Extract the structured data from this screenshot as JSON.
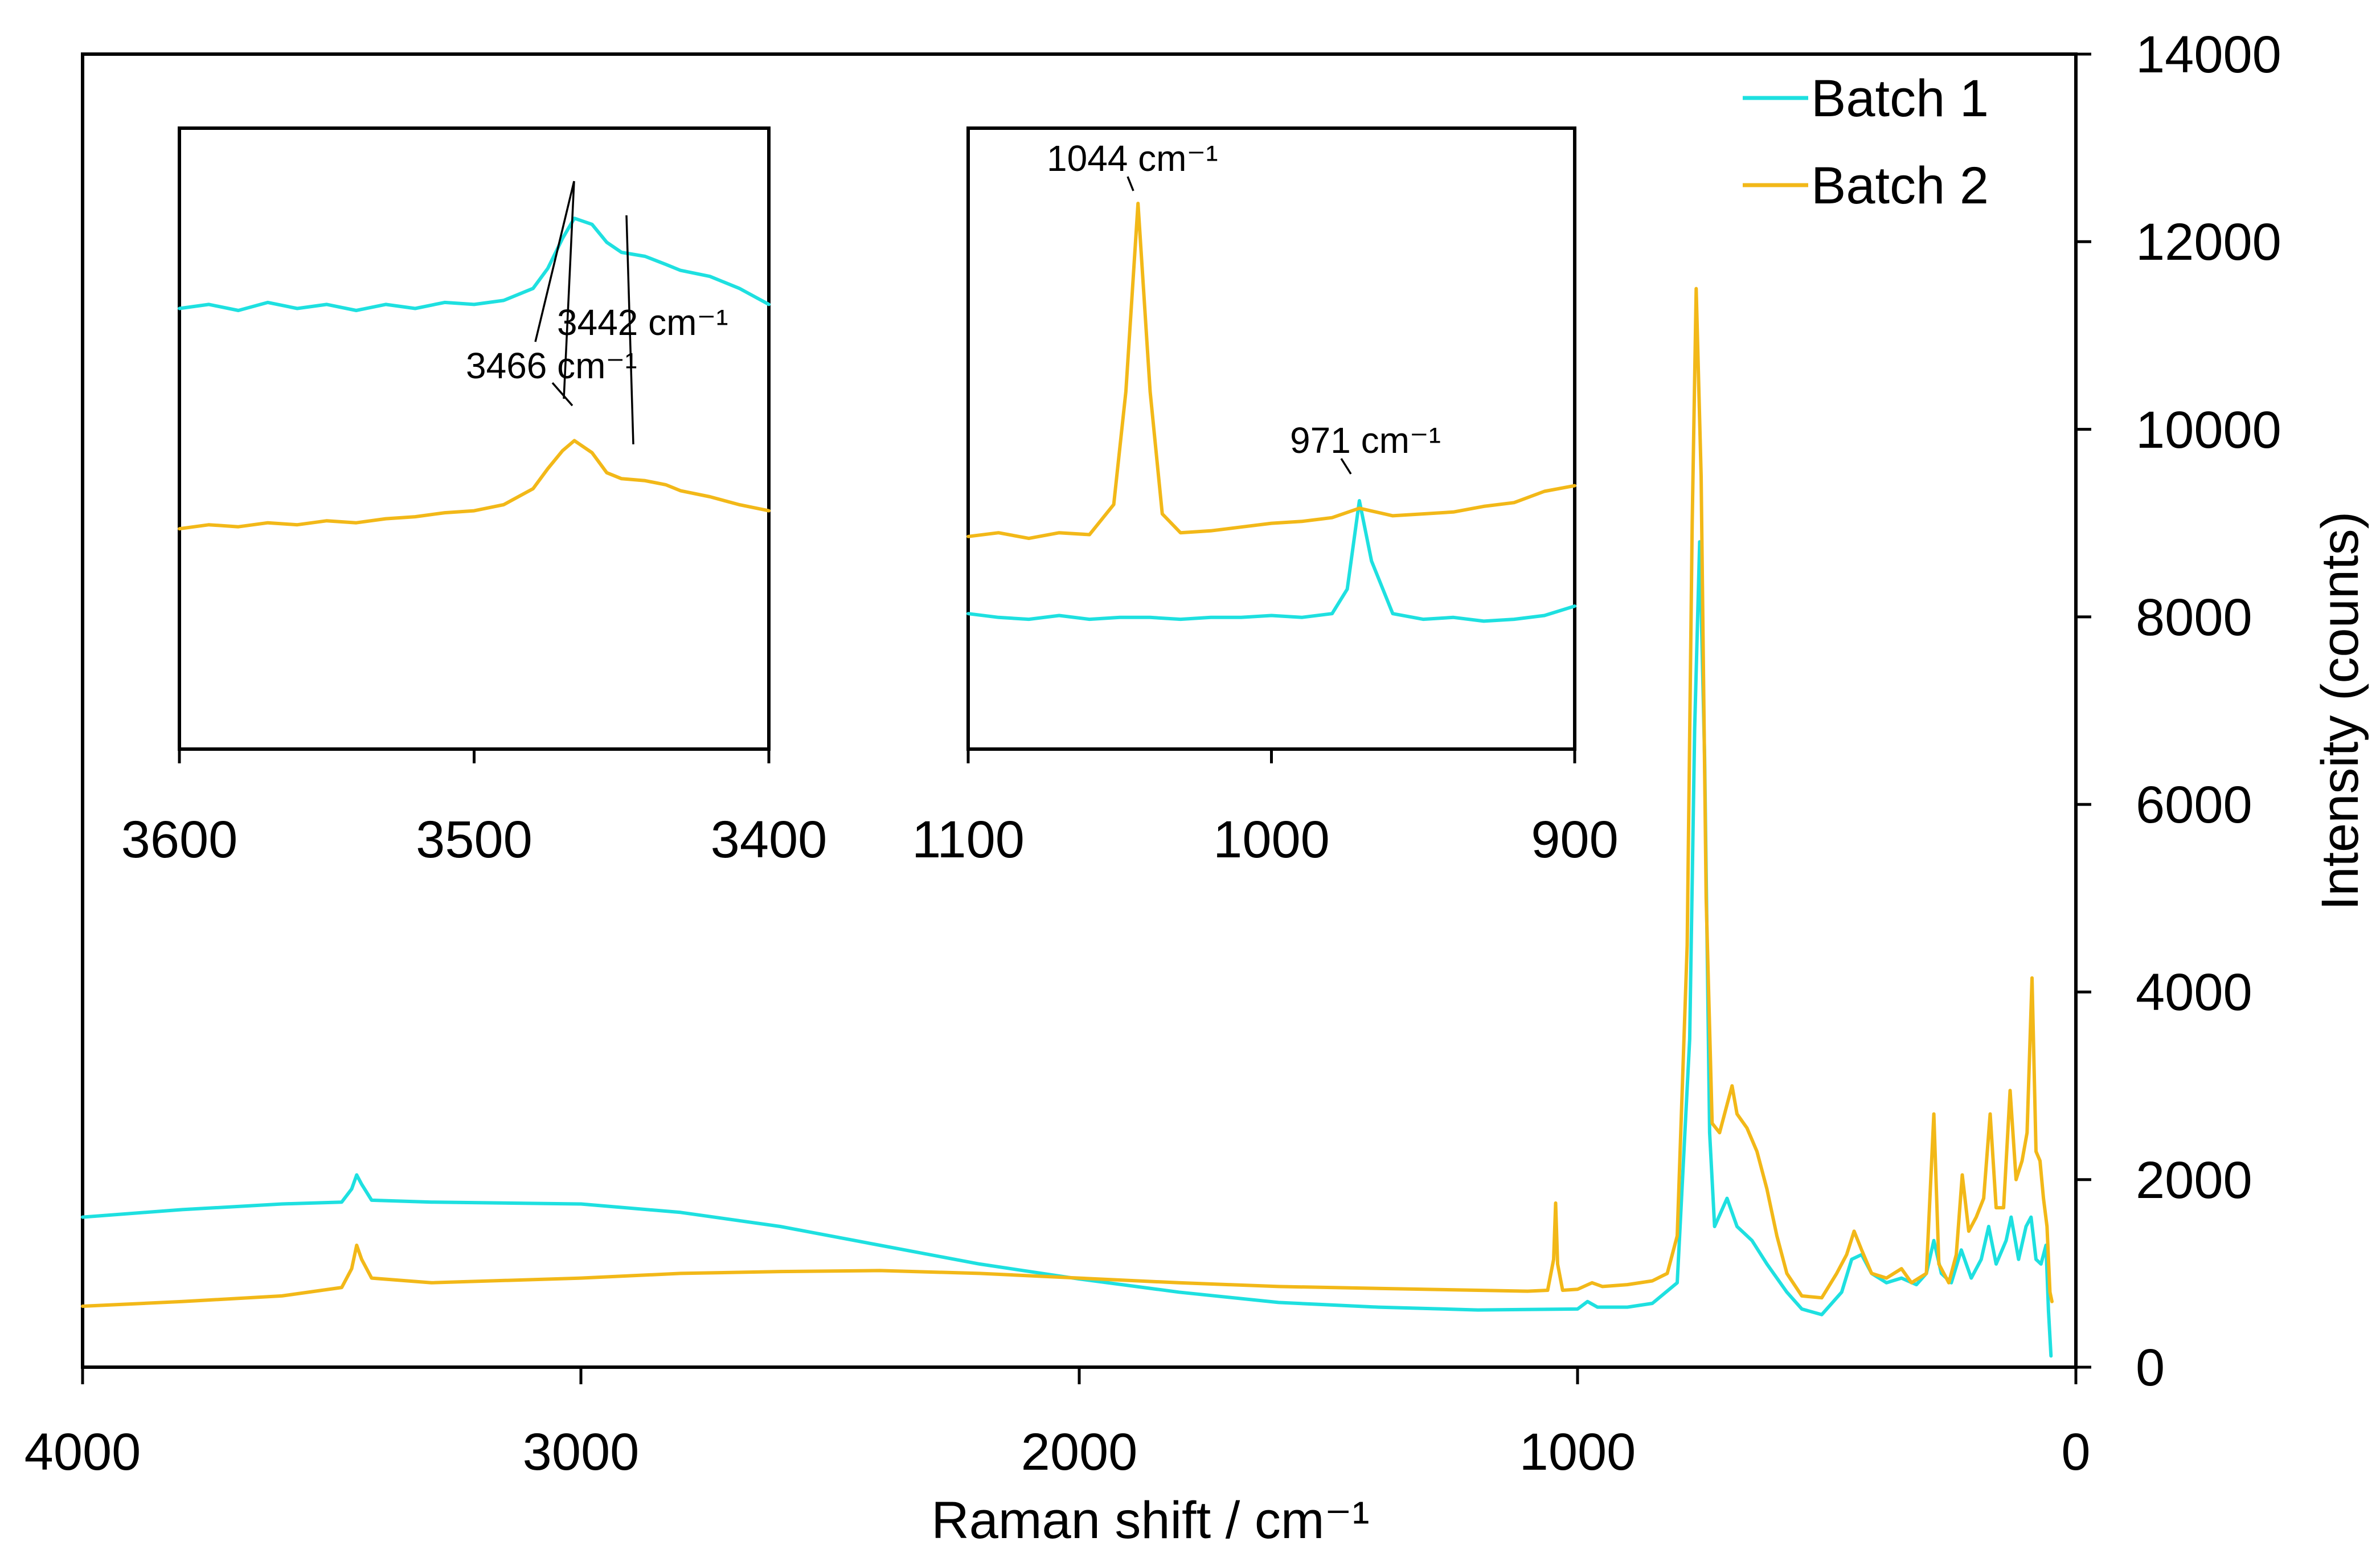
{
  "chart_data": {
    "type": "line",
    "title": "",
    "xlabel": "Raman shift / cm⁻¹",
    "ylabel": "Intensity (counts)",
    "x_axis_reversed": true,
    "xlim": [
      4000,
      0
    ],
    "ylim": [
      0,
      14000
    ],
    "x_ticks": [
      4000,
      3000,
      2000,
      1000,
      0
    ],
    "x_tick_labels": [
      "4000",
      "3000",
      "2000",
      "1000",
      "0"
    ],
    "y_ticks": [
      0,
      2000,
      4000,
      6000,
      8000,
      10000,
      12000,
      14000
    ],
    "y_tick_labels": [
      "0",
      "2000",
      "4000",
      "6000",
      "8000",
      "10000",
      "12000",
      "14000"
    ],
    "y_axis_position": "right",
    "grid": false,
    "legend": {
      "position": "top-right",
      "entries": [
        "Batch 1",
        "Batch 2"
      ]
    },
    "series": [
      {
        "name": "Batch 1",
        "color": "#1ee0e0",
        "points": [
          [
            4000,
            1600
          ],
          [
            3800,
            1680
          ],
          [
            3600,
            1740
          ],
          [
            3480,
            1760
          ],
          [
            3460,
            1900
          ],
          [
            3450,
            2050
          ],
          [
            3440,
            1950
          ],
          [
            3420,
            1780
          ],
          [
            3300,
            1760
          ],
          [
            3000,
            1740
          ],
          [
            2800,
            1650
          ],
          [
            2600,
            1500
          ],
          [
            2400,
            1300
          ],
          [
            2200,
            1100
          ],
          [
            2000,
            940
          ],
          [
            1800,
            800
          ],
          [
            1600,
            690
          ],
          [
            1400,
            640
          ],
          [
            1200,
            610
          ],
          [
            1000,
            620
          ],
          [
            980,
            700
          ],
          [
            960,
            640
          ],
          [
            900,
            640
          ],
          [
            850,
            680
          ],
          [
            800,
            900
          ],
          [
            775,
            3500
          ],
          [
            765,
            6800
          ],
          [
            755,
            8800
          ],
          [
            745,
            6500
          ],
          [
            735,
            2500
          ],
          [
            725,
            1500
          ],
          [
            700,
            1800
          ],
          [
            680,
            1500
          ],
          [
            650,
            1350
          ],
          [
            620,
            1100
          ],
          [
            580,
            800
          ],
          [
            550,
            620
          ],
          [
            510,
            560
          ],
          [
            470,
            800
          ],
          [
            450,
            1150
          ],
          [
            430,
            1200
          ],
          [
            410,
            1000
          ],
          [
            380,
            900
          ],
          [
            350,
            950
          ],
          [
            320,
            880
          ],
          [
            300,
            1000
          ],
          [
            285,
            1350
          ],
          [
            270,
            1000
          ],
          [
            250,
            900
          ],
          [
            230,
            1250
          ],
          [
            210,
            950
          ],
          [
            190,
            1150
          ],
          [
            175,
            1500
          ],
          [
            160,
            1100
          ],
          [
            140,
            1350
          ],
          [
            130,
            1600
          ],
          [
            115,
            1150
          ],
          [
            100,
            1500
          ],
          [
            90,
            1600
          ],
          [
            80,
            1150
          ],
          [
            70,
            1100
          ],
          [
            60,
            1300
          ],
          [
            55,
            600
          ],
          [
            50,
            120
          ]
        ]
      },
      {
        "name": "Batch 2",
        "color": "#f2b818",
        "points": [
          [
            4000,
            650
          ],
          [
            3800,
            700
          ],
          [
            3600,
            760
          ],
          [
            3480,
            850
          ],
          [
            3460,
            1050
          ],
          [
            3450,
            1300
          ],
          [
            3440,
            1150
          ],
          [
            3420,
            950
          ],
          [
            3300,
            900
          ],
          [
            3000,
            950
          ],
          [
            2800,
            1000
          ],
          [
            2600,
            1020
          ],
          [
            2400,
            1030
          ],
          [
            2200,
            1000
          ],
          [
            2000,
            950
          ],
          [
            1800,
            900
          ],
          [
            1600,
            860
          ],
          [
            1400,
            840
          ],
          [
            1200,
            820
          ],
          [
            1100,
            810
          ],
          [
            1060,
            820
          ],
          [
            1048,
            1150
          ],
          [
            1044,
            1750
          ],
          [
            1040,
            1100
          ],
          [
            1030,
            820
          ],
          [
            1000,
            830
          ],
          [
            971,
            900
          ],
          [
            950,
            860
          ],
          [
            900,
            880
          ],
          [
            850,
            920
          ],
          [
            820,
            1000
          ],
          [
            800,
            1400
          ],
          [
            780,
            4500
          ],
          [
            770,
            9000
          ],
          [
            762,
            11500
          ],
          [
            752,
            9500
          ],
          [
            742,
            5000
          ],
          [
            730,
            2600
          ],
          [
            715,
            2500
          ],
          [
            700,
            2800
          ],
          [
            690,
            3000
          ],
          [
            680,
            2700
          ],
          [
            660,
            2550
          ],
          [
            640,
            2300
          ],
          [
            620,
            1900
          ],
          [
            600,
            1400
          ],
          [
            580,
            1000
          ],
          [
            550,
            760
          ],
          [
            510,
            740
          ],
          [
            480,
            1000
          ],
          [
            460,
            1200
          ],
          [
            445,
            1450
          ],
          [
            430,
            1250
          ],
          [
            410,
            1000
          ],
          [
            380,
            950
          ],
          [
            350,
            1050
          ],
          [
            330,
            900
          ],
          [
            300,
            1000
          ],
          [
            285,
            2700
          ],
          [
            275,
            1100
          ],
          [
            255,
            900
          ],
          [
            240,
            1200
          ],
          [
            228,
            2050
          ],
          [
            215,
            1450
          ],
          [
            200,
            1600
          ],
          [
            185,
            1800
          ],
          [
            172,
            2700
          ],
          [
            160,
            1700
          ],
          [
            145,
            1700
          ],
          [
            132,
            2950
          ],
          [
            120,
            2000
          ],
          [
            108,
            2200
          ],
          [
            98,
            2500
          ],
          [
            88,
            4150
          ],
          [
            80,
            2300
          ],
          [
            72,
            2200
          ],
          [
            65,
            1800
          ],
          [
            58,
            1500
          ],
          [
            52,
            800
          ],
          [
            48,
            700
          ]
        ]
      }
    ],
    "insets": [
      {
        "name": "inset-left",
        "xlim": [
          3600,
          3400
        ],
        "x_ticks": [
          3600,
          3500,
          3400
        ],
        "x_tick_labels": [
          "3600",
          "3500",
          "3400"
        ],
        "annotations": [
          "3442 cm⁻¹",
          "3466 cm⁻¹"
        ],
        "series": [
          {
            "name": "Batch 1",
            "color": "#1ee0e0",
            "points": [
              [
                3600,
                11700
              ],
              [
                3590,
                11720
              ],
              [
                3580,
                11690
              ],
              [
                3570,
                11730
              ],
              [
                3560,
                11700
              ],
              [
                3550,
                11720
              ],
              [
                3540,
                11690
              ],
              [
                3530,
                11720
              ],
              [
                3520,
                11700
              ],
              [
                3510,
                11730
              ],
              [
                3500,
                11720
              ],
              [
                3490,
                11740
              ],
              [
                3480,
                11800
              ],
              [
                3475,
                11900
              ],
              [
                3470,
                12050
              ],
              [
                3466,
                12150
              ],
              [
                3460,
                12120
              ],
              [
                3455,
                12030
              ],
              [
                3450,
                11980
              ],
              [
                3442,
                11960
              ],
              [
                3435,
                11920
              ],
              [
                3430,
                11890
              ],
              [
                3420,
                11860
              ],
              [
                3410,
                11800
              ],
              [
                3400,
                11720
              ]
            ]
          },
          {
            "name": "Batch 2",
            "color": "#f2b818",
            "points": [
              [
                3600,
                10600
              ],
              [
                3590,
                10620
              ],
              [
                3580,
                10610
              ],
              [
                3570,
                10630
              ],
              [
                3560,
                10620
              ],
              [
                3550,
                10640
              ],
              [
                3540,
                10630
              ],
              [
                3530,
                10650
              ],
              [
                3520,
                10660
              ],
              [
                3510,
                10680
              ],
              [
                3500,
                10690
              ],
              [
                3490,
                10720
              ],
              [
                3480,
                10800
              ],
              [
                3475,
                10900
              ],
              [
                3470,
                10990
              ],
              [
                3466,
                11040
              ],
              [
                3460,
                10980
              ],
              [
                3455,
                10880
              ],
              [
                3450,
                10850
              ],
              [
                3442,
                10840
              ],
              [
                3435,
                10820
              ],
              [
                3430,
                10790
              ],
              [
                3420,
                10760
              ],
              [
                3410,
                10720
              ],
              [
                3400,
                10690
              ]
            ]
          }
        ]
      },
      {
        "name": "inset-right",
        "xlim": [
          1100,
          900
        ],
        "x_ticks": [
          1100,
          1000,
          900
        ],
        "x_tick_labels": [
          "1100",
          "1000",
          "900"
        ],
        "annotations": [
          "1044 cm⁻¹",
          "971 cm⁻¹"
        ],
        "series": [
          {
            "name": "Batch 1",
            "color": "#1ee0e0",
            "points": [
              [
                1100,
                8720
              ],
              [
                1090,
                8700
              ],
              [
                1080,
                8690
              ],
              [
                1070,
                8710
              ],
              [
                1060,
                8690
              ],
              [
                1050,
                8700
              ],
              [
                1040,
                8700
              ],
              [
                1030,
                8690
              ],
              [
                1020,
                8700
              ],
              [
                1010,
                8700
              ],
              [
                1000,
                8710
              ],
              [
                990,
                8700
              ],
              [
                980,
                8720
              ],
              [
                975,
                8850
              ],
              [
                971,
                9320
              ],
              [
                967,
                9000
              ],
              [
                960,
                8720
              ],
              [
                950,
                8690
              ],
              [
                940,
                8700
              ],
              [
                930,
                8680
              ],
              [
                920,
                8690
              ],
              [
                910,
                8710
              ],
              [
                900,
                8760
              ]
            ]
          },
          {
            "name": "Batch 2",
            "color": "#f2b818",
            "points": [
              [
                1100,
                9130
              ],
              [
                1090,
                9150
              ],
              [
                1080,
                9120
              ],
              [
                1070,
                9150
              ],
              [
                1060,
                9140
              ],
              [
                1052,
                9300
              ],
              [
                1048,
                9900
              ],
              [
                1044,
                10900
              ],
              [
                1040,
                9900
              ],
              [
                1036,
                9250
              ],
              [
                1030,
                9150
              ],
              [
                1020,
                9160
              ],
              [
                1010,
                9180
              ],
              [
                1000,
                9200
              ],
              [
                990,
                9210
              ],
              [
                980,
                9230
              ],
              [
                971,
                9280
              ],
              [
                960,
                9240
              ],
              [
                950,
                9250
              ],
              [
                940,
                9260
              ],
              [
                930,
                9290
              ],
              [
                920,
                9310
              ],
              [
                910,
                9370
              ],
              [
                900,
                9400
              ]
            ]
          }
        ]
      }
    ]
  }
}
